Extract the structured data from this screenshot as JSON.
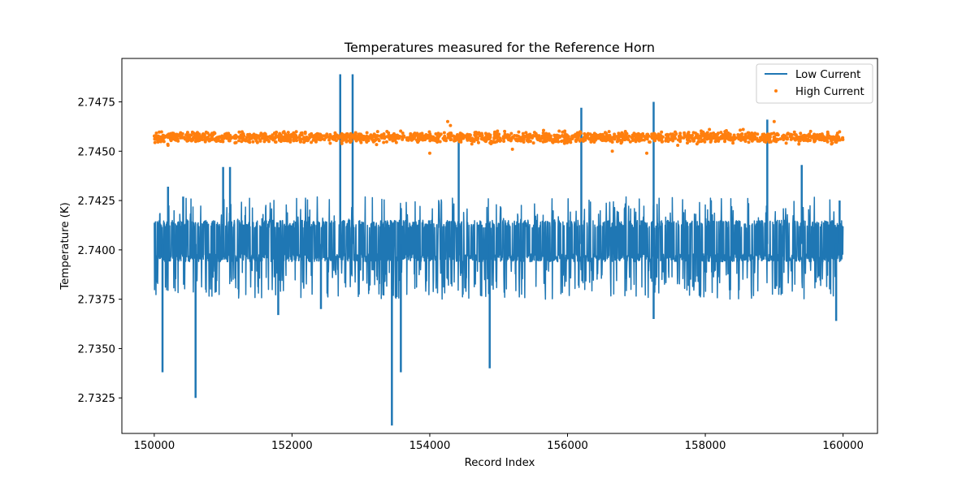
{
  "chart_data": {
    "type": "line",
    "title": "Temperatures measured for the Reference Horn",
    "xlabel": "Record Index",
    "ylabel": "Temperature (K)",
    "xlim": [
      149530,
      160500
    ],
    "ylim": [
      2.7307,
      2.7497
    ],
    "x_ticks": [
      150000,
      152000,
      154000,
      156000,
      158000,
      160000
    ],
    "x_tick_labels": [
      "150000",
      "152000",
      "154000",
      "156000",
      "158000",
      "160000"
    ],
    "y_ticks": [
      2.7325,
      2.735,
      2.7375,
      2.74,
      2.7425,
      2.745,
      2.7475
    ],
    "y_tick_labels": [
      "2.7325",
      "2.7350",
      "2.7375",
      "2.7400",
      "2.7425",
      "2.7450",
      "2.7475"
    ],
    "legend_position": "top-right",
    "series": [
      {
        "name": "Low Current",
        "kind": "line",
        "color": "#1f77b4",
        "x_range": [
          150000,
          160000
        ],
        "band_low": 2.7394,
        "band_high": 2.7415,
        "baseline": 2.7403,
        "spikes": [
          {
            "x": 150120,
            "value": 2.7338
          },
          {
            "x": 150600,
            "value": 2.7325
          },
          {
            "x": 150200,
            "value": 2.7432
          },
          {
            "x": 150420,
            "value": 2.7427
          },
          {
            "x": 151000,
            "value": 2.7442
          },
          {
            "x": 151100,
            "value": 2.7442
          },
          {
            "x": 151800,
            "value": 2.7367
          },
          {
            "x": 152420,
            "value": 2.737
          },
          {
            "x": 152700,
            "value": 2.7489
          },
          {
            "x": 152880,
            "value": 2.7489
          },
          {
            "x": 153450,
            "value": 2.7311
          },
          {
            "x": 153580,
            "value": 2.7338
          },
          {
            "x": 154420,
            "value": 2.7458
          },
          {
            "x": 154870,
            "value": 2.734
          },
          {
            "x": 156200,
            "value": 2.7472
          },
          {
            "x": 157250,
            "value": 2.7475
          },
          {
            "x": 157250,
            "value": 2.7365
          },
          {
            "x": 158900,
            "value": 2.7466
          },
          {
            "x": 159400,
            "value": 2.7443
          },
          {
            "x": 159900,
            "value": 2.7364
          },
          {
            "x": 159950,
            "value": 2.7425
          }
        ]
      },
      {
        "name": "High Current",
        "kind": "scatter",
        "color": "#ff7f0e",
        "x_range": [
          150000,
          160000
        ],
        "center": 2.7457,
        "spread": 0.00035,
        "outliers": [
          {
            "x": 150200,
            "value": 2.7453
          },
          {
            "x": 154000,
            "value": 2.7449
          },
          {
            "x": 154260,
            "value": 2.7465
          },
          {
            "x": 154300,
            "value": 2.7463
          },
          {
            "x": 155200,
            "value": 2.7451
          },
          {
            "x": 156650,
            "value": 2.745
          },
          {
            "x": 157150,
            "value": 2.7449
          },
          {
            "x": 157600,
            "value": 2.7453
          },
          {
            "x": 158060,
            "value": 2.7461
          },
          {
            "x": 159000,
            "value": 2.7465
          },
          {
            "x": 158550,
            "value": 2.7461
          }
        ]
      }
    ]
  }
}
